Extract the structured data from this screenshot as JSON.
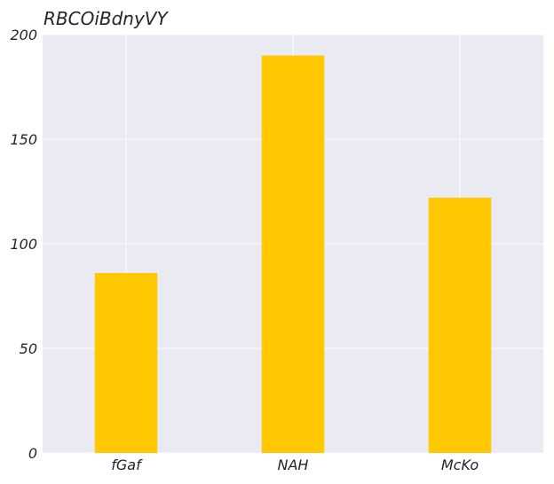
{
  "chart_data": {
    "type": "bar",
    "title": "RBCOiBdnyVY",
    "xlabel": "",
    "ylabel": "",
    "categories": [
      "fGaf",
      "NAH",
      "McKo"
    ],
    "values": [
      86,
      190,
      122
    ],
    "ylim": [
      0,
      200
    ],
    "yticks": [
      0,
      50,
      100,
      150,
      200
    ],
    "grid": true,
    "colors": {
      "bar": "#ffc800",
      "plot_background": "#eaeaf2",
      "grid": "#ffffff",
      "text": "#262626"
    }
  }
}
